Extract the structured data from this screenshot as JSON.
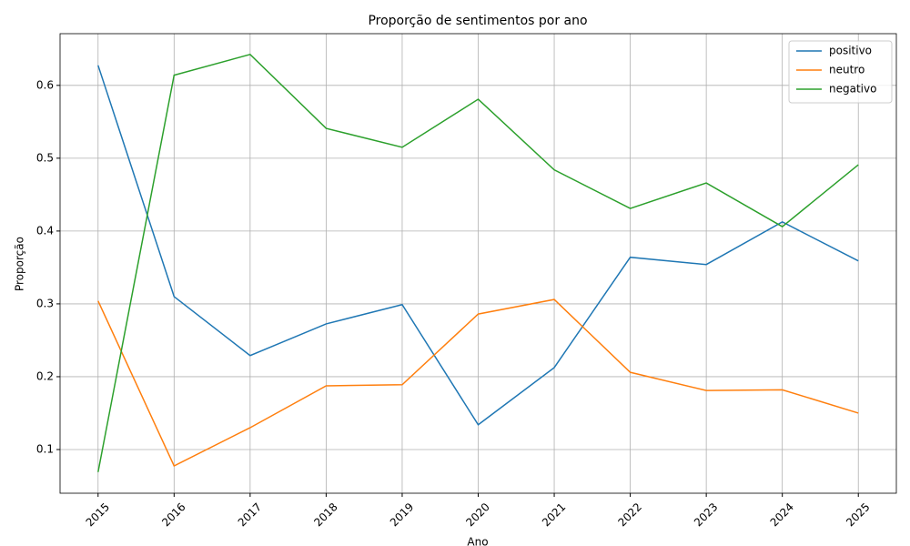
{
  "chart_data": {
    "type": "line",
    "title": "Proporção de sentimentos por ano",
    "x_label": "Ano",
    "y_label": "Proporção",
    "x": [
      2015,
      2016,
      2017,
      2018,
      2019,
      2020,
      2021,
      2022,
      2023,
      2024,
      2025
    ],
    "series": [
      {
        "name": "positivo",
        "color": "#1f77b4",
        "values": [
          0.6275,
          0.31,
          0.229,
          0.2725,
          0.299,
          0.134,
          0.2125,
          0.364,
          0.354,
          0.4125,
          0.359
        ]
      },
      {
        "name": "neutro",
        "color": "#ff7f0e",
        "values": [
          0.304,
          0.0775,
          0.13,
          0.1875,
          0.189,
          0.286,
          0.306,
          0.206,
          0.181,
          0.182,
          0.15
        ]
      },
      {
        "name": "negativo",
        "color": "#2ca02c",
        "values": [
          0.069,
          0.614,
          0.6425,
          0.541,
          0.515,
          0.581,
          0.484,
          0.431,
          0.466,
          0.406,
          0.491
        ]
      }
    ],
    "xlim": [
      2014.5,
      2025.5
    ],
    "xticks": [
      2015,
      2016,
      2017,
      2018,
      2019,
      2020,
      2021,
      2022,
      2023,
      2024,
      2025
    ],
    "ylim": [
      0.04,
      0.671
    ],
    "yticks": [
      0.1,
      0.2,
      0.3,
      0.4,
      0.5,
      0.6
    ],
    "grid": true,
    "legend": "upper-right"
  }
}
